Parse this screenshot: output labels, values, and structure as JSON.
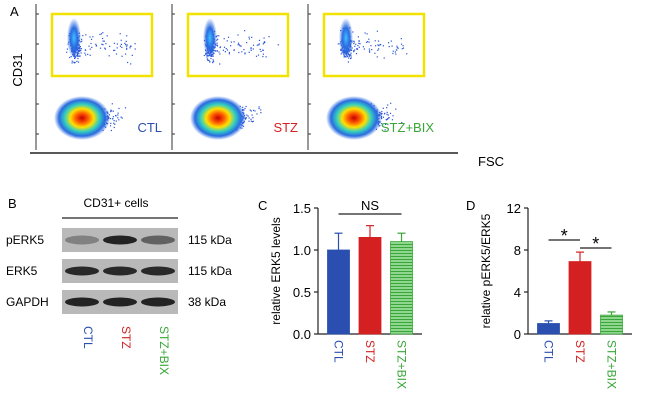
{
  "panel_a": {
    "letter": "A",
    "ylabel": "CD31",
    "xlabel": "FSC",
    "plots": [
      {
        "label": "CTL",
        "color": "#2b4fb0"
      },
      {
        "label": "STZ",
        "color": "#d42020"
      },
      {
        "label": "STZ+BIX",
        "color": "#3aa63a"
      }
    ],
    "gate_color": "#f2e200"
  },
  "panel_b": {
    "letter": "B",
    "title": "CD31+ cells",
    "rows": [
      {
        "name": "pERK5",
        "kda": "115 kDa"
      },
      {
        "name": "ERK5",
        "kda": "115 kDa"
      },
      {
        "name": "GAPDH",
        "kda": "38 kDa"
      }
    ],
    "lanes": [
      {
        "label": "CTL",
        "color": "#2b4fb0"
      },
      {
        "label": "STZ",
        "color": "#d42020"
      },
      {
        "label": "STZ+BIX",
        "color": "#3aa63a"
      }
    ]
  },
  "chart_data": [
    {
      "panel": "C",
      "type": "bar",
      "categories": [
        "CTL",
        "STZ",
        "STZ+BIX"
      ],
      "values": [
        1.0,
        1.15,
        1.1
      ],
      "errors": [
        0.2,
        0.14,
        0.1
      ],
      "colors": [
        "#2b4fb0",
        "#d42020",
        "#3aa63a"
      ],
      "ylabel": "relative ERK5 levels",
      "ylim": [
        0,
        1.5
      ],
      "yticks": [
        "0.0",
        "0.5",
        "1.0",
        "1.5"
      ],
      "annotation": "NS"
    },
    {
      "panel": "D",
      "type": "bar",
      "categories": [
        "CTL",
        "STZ",
        "STZ+BIX"
      ],
      "values": [
        1.0,
        6.9,
        1.8
      ],
      "errors": [
        0.25,
        0.9,
        0.3
      ],
      "colors": [
        "#2b4fb0",
        "#d42020",
        "#3aa63a"
      ],
      "ylabel": "relative pERK5/ERK5",
      "ylim": [
        0,
        12
      ],
      "yticks": [
        "0",
        "4",
        "8",
        "12"
      ],
      "annotations": [
        "*",
        "*"
      ]
    }
  ]
}
